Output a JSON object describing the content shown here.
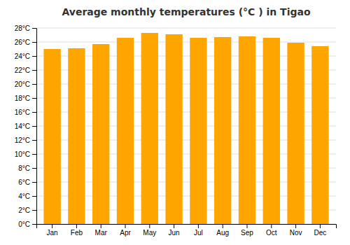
{
  "chart_data": {
    "type": "bar",
    "title": "Average monthly temperatures (°C ) in Tigao",
    "categories": [
      "Jan",
      "Feb",
      "Mar",
      "Apr",
      "May",
      "Jun",
      "Jul",
      "Aug",
      "Sep",
      "Oct",
      "Nov",
      "Dec"
    ],
    "values": [
      25.0,
      25.1,
      25.7,
      26.6,
      27.3,
      27.1,
      26.6,
      26.7,
      26.8,
      26.6,
      25.9,
      25.4
    ],
    "color": "#FFA500",
    "ylim": [
      0,
      28
    ],
    "yticks": [
      {
        "value": 0,
        "label": "0°C"
      },
      {
        "value": 2,
        "label": "2°C"
      },
      {
        "value": 4,
        "label": "4°C"
      },
      {
        "value": 6,
        "label": "6°C"
      },
      {
        "value": 8,
        "label": "8°C"
      },
      {
        "value": 10,
        "label": "10°C"
      },
      {
        "value": 12,
        "label": "12°C"
      },
      {
        "value": 14,
        "label": "14°C"
      },
      {
        "value": 16,
        "label": "16°C"
      },
      {
        "value": 18,
        "label": "18°C"
      },
      {
        "value": 20,
        "label": "20°C"
      },
      {
        "value": 22,
        "label": "22°C"
      },
      {
        "value": 24,
        "label": "24°C"
      },
      {
        "value": 26,
        "label": "26°C"
      },
      {
        "value": 28,
        "label": "28°C"
      }
    ],
    "grid": true
  }
}
